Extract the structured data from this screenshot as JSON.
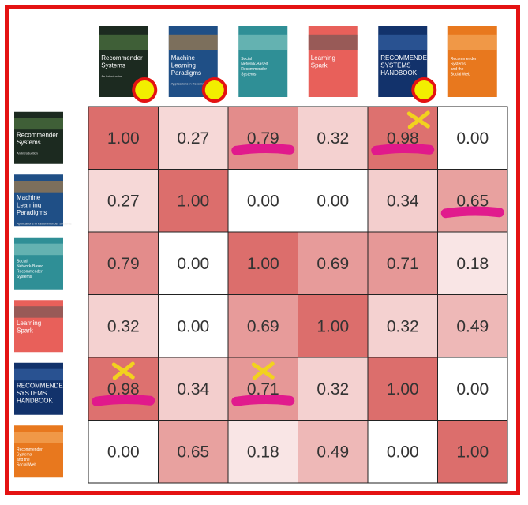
{
  "chart_data": {
    "type": "heatmap",
    "title": "",
    "xlabel": "",
    "ylabel": "",
    "items": [
      {
        "cover_title": "Recommender Systems",
        "cover_subtitle": "An Introduction",
        "cover_color": "#1c2a20",
        "accent": "#5d8a4a"
      },
      {
        "cover_title": "Machine Learning Paradigms",
        "cover_subtitle": "Applications in Recommender Systems",
        "cover_color": "#1f4f86",
        "accent": "#c98a3a"
      },
      {
        "cover_title": "Social Network-Based Recommender Systems",
        "cover_subtitle": "",
        "cover_color": "#2f8f96",
        "accent": "#8fd0c8"
      },
      {
        "cover_title": "Learning Spark",
        "cover_subtitle": "",
        "cover_color": "#e8605a",
        "accent": "#555555"
      },
      {
        "cover_title": "RECOMMENDER SYSTEMS HANDBOOK",
        "cover_subtitle": "",
        "cover_color": "#12326b",
        "accent": "#3c6db0"
      },
      {
        "cover_title": "Recommender Systems and the Social Web",
        "cover_subtitle": "",
        "cover_color": "#e8781e",
        "accent": "#f5b36a"
      }
    ],
    "matrix": [
      [
        1.0,
        0.27,
        0.79,
        0.32,
        0.98,
        0.0
      ],
      [
        0.27,
        1.0,
        0.0,
        0.0,
        0.34,
        0.65
      ],
      [
        0.79,
        0.0,
        1.0,
        0.69,
        0.71,
        0.18
      ],
      [
        0.32,
        0.0,
        0.69,
        1.0,
        0.32,
        0.49
      ],
      [
        0.98,
        0.34,
        0.71,
        0.32,
        1.0,
        0.0
      ],
      [
        0.0,
        0.65,
        0.18,
        0.49,
        0.0,
        1.0
      ]
    ],
    "labels": [
      [
        "1.00",
        "0.27",
        "0.79",
        "0.32",
        "0.98",
        "0.00"
      ],
      [
        "0.27",
        "1.00",
        "0.00",
        "0.00",
        "0.34",
        "0.65"
      ],
      [
        "0.79",
        "0.00",
        "1.00",
        "0.69",
        "0.71",
        "0.18"
      ],
      [
        "0.32",
        "0.00",
        "0.69",
        "1.00",
        "0.32",
        "0.49"
      ],
      [
        "0.98",
        "0.34",
        "0.71",
        "0.32",
        "1.00",
        "0.00"
      ],
      [
        "0.00",
        "0.65",
        "0.18",
        "0.49",
        "0.00",
        "1.00"
      ]
    ],
    "color_scale": {
      "low": "#ffffff",
      "high": "#dc6e6c"
    },
    "annotations": {
      "circles": [
        0,
        1,
        4
      ],
      "circle_fill": "#f2ee00",
      "circle_stroke": "#e41212",
      "underlines": [
        [
          0,
          2
        ],
        [
          0,
          4
        ],
        [
          1,
          5
        ],
        [
          4,
          0
        ],
        [
          4,
          2
        ]
      ],
      "underline_color": "#e0148c",
      "crosses": [
        [
          0,
          4
        ],
        [
          4,
          0
        ],
        [
          4,
          2
        ]
      ],
      "cross_color": "#f2d21e"
    },
    "frame_color": "#e41212"
  }
}
